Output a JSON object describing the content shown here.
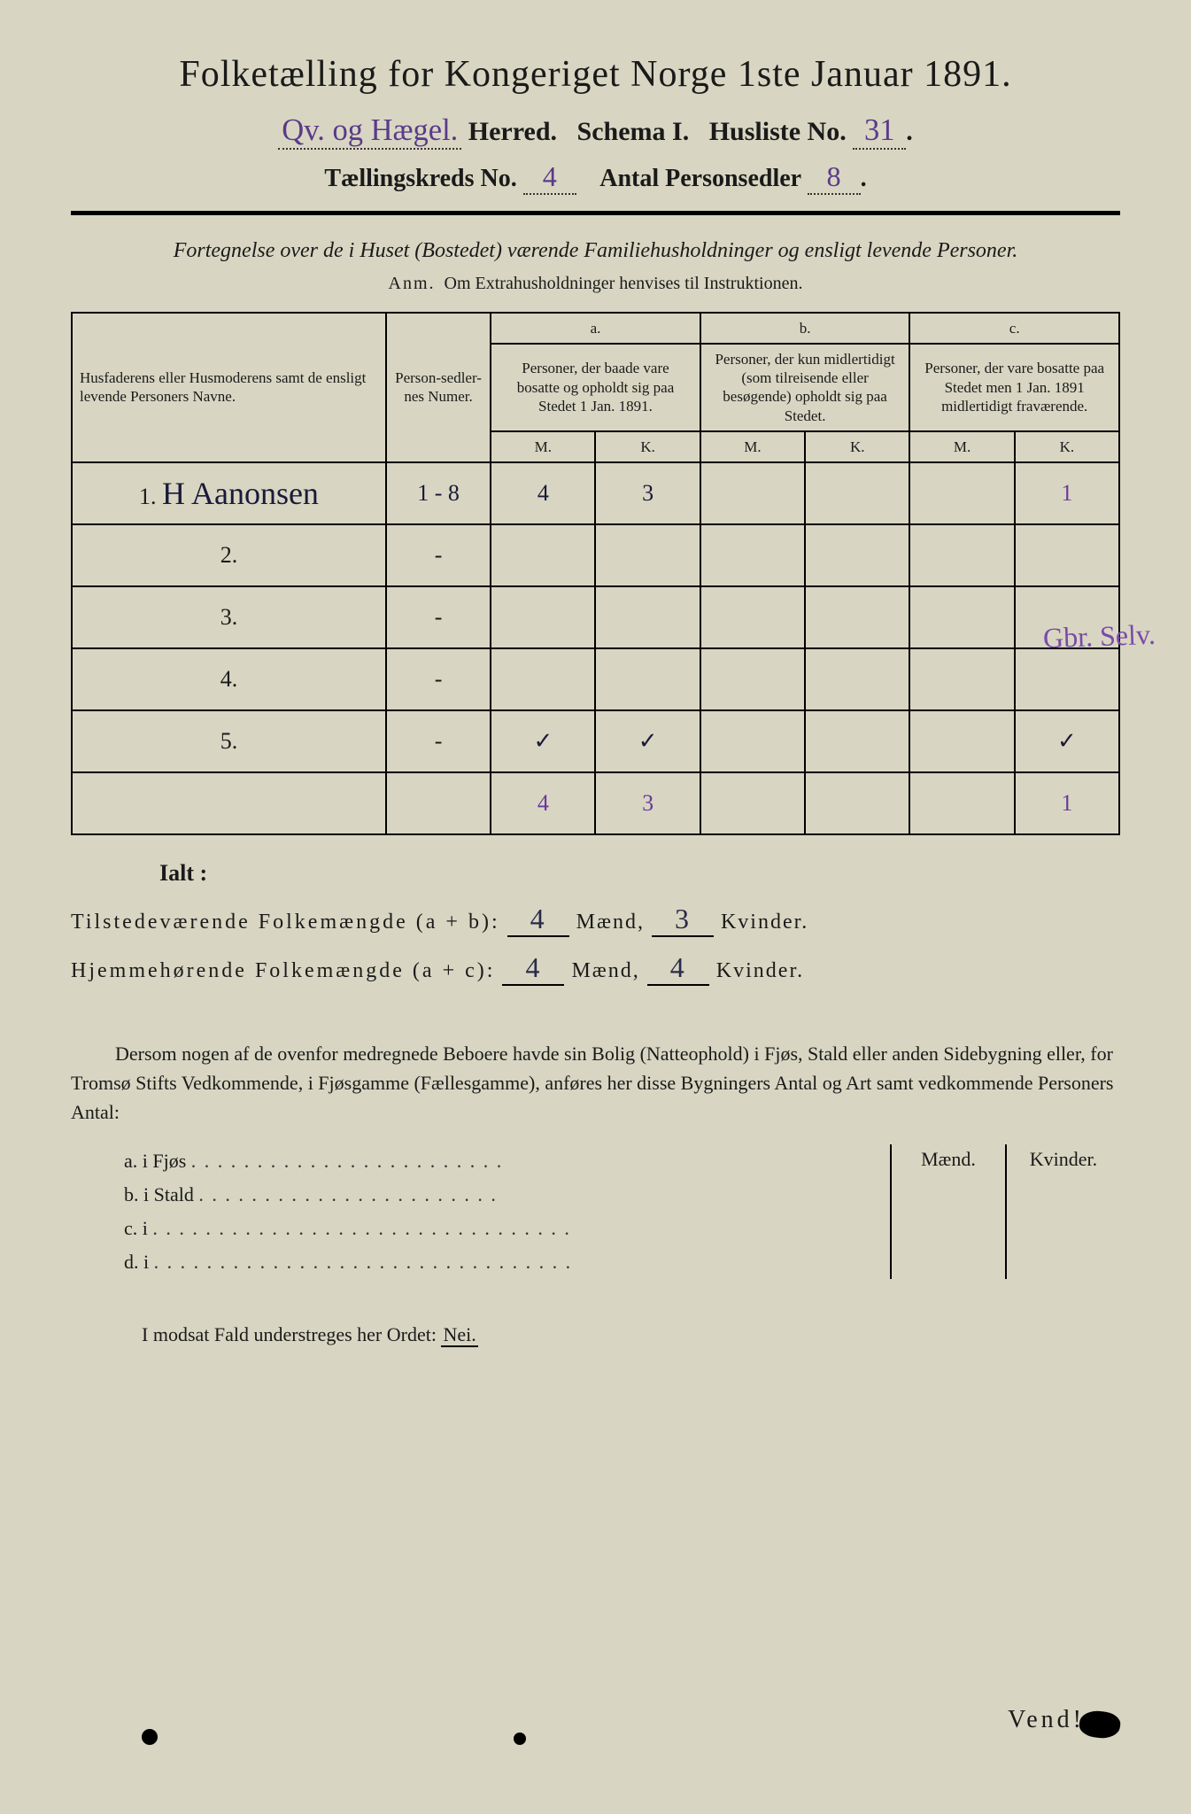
{
  "title": "Folketælling for Kongeriget Norge 1ste Januar 1891.",
  "header": {
    "herred_hand": "Qv. og Hægel.",
    "herred_label": "Herred.",
    "schema_label": "Schema I.",
    "husliste_label": "Husliste No.",
    "husliste_no": "31",
    "kreds_label": "Tællingskreds No.",
    "kreds_no": "4",
    "sedler_label": "Antal Personsedler",
    "sedler_no": "8"
  },
  "subtitle": "Fortegnelse over de i Huset (Bostedet) værende Familiehusholdninger og ensligt levende Personer.",
  "anm_label": "Anm.",
  "anm_text": "Om Extrahusholdninger henvises til Instruktionen.",
  "columns": {
    "name": "Husfaderens eller Husmoderens samt de ensligt levende Personers Navne.",
    "numer": "Person-sedler-nes Numer.",
    "a_top": "a.",
    "a": "Personer, der baade vare bosatte og opholdt sig paa Stedet 1 Jan. 1891.",
    "b_top": "b.",
    "b": "Personer, der kun midlertidigt (som tilreisende eller besøgende) opholdt sig paa Stedet.",
    "c_top": "c.",
    "c": "Personer, der vare bosatte paa Stedet men 1 Jan. 1891 midlertidigt fraværende.",
    "m": "M.",
    "k": "K."
  },
  "rows": [
    {
      "n": "1.",
      "name": "H Aanonsen",
      "numer": "1 - 8",
      "am": "4",
      "ak": "3",
      "bm": "",
      "bk": "",
      "cm": "",
      "ck": "1"
    },
    {
      "n": "2.",
      "name": "",
      "numer": "-",
      "am": "",
      "ak": "",
      "bm": "",
      "bk": "",
      "cm": "",
      "ck": ""
    },
    {
      "n": "3.",
      "name": "",
      "numer": "-",
      "am": "",
      "ak": "",
      "bm": "",
      "bk": "",
      "cm": "",
      "ck": ""
    },
    {
      "n": "4.",
      "name": "",
      "numer": "-",
      "am": "",
      "ak": "",
      "bm": "",
      "bk": "",
      "cm": "",
      "ck": ""
    },
    {
      "n": "5.",
      "name": "",
      "numer": "-",
      "am": "✓",
      "ak": "✓",
      "bm": "",
      "bk": "",
      "cm": "",
      "ck": "✓"
    }
  ],
  "col_totals": {
    "am": "4",
    "ak": "3",
    "ck": "1"
  },
  "margin_note": "Gbr. Selv.",
  "ialt": {
    "label": "Ialt :",
    "line1_a": "Tilstedeværende Folkemængde (a + b):",
    "line1_m": "4",
    "line1_k": "3",
    "line2_a": "Hjemmehørende Folkemængde (a + c):",
    "line2_m": "4",
    "line2_k": "4",
    "maend": "Mænd,",
    "kvinder": "Kvinder."
  },
  "para": "Dersom nogen af de ovenfor medregnede Beboere havde sin Bolig (Natteophold) i Fjøs, Stald eller anden Sidebygning eller, for Tromsø Stifts Vedkommende, i Fjøsgamme (Fællesgamme), anføres her disse Bygningers Antal og Art samt vedkommende Personers Antal:",
  "side": {
    "maend": "Mænd.",
    "kvinder": "Kvinder.",
    "a": "a.  i      Fjøs",
    "b": "b.  i      Stald",
    "c": "c.  i",
    "d": "d.  i"
  },
  "nei_line": "I modsat Fald understreges her Ordet:",
  "nei": "Nei.",
  "vend": "Vend!"
}
